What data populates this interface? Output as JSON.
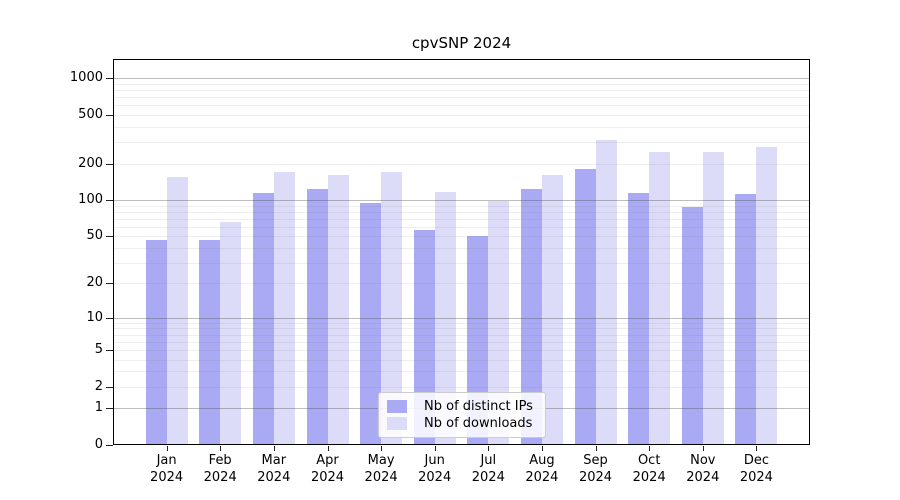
{
  "chart_data": {
    "type": "bar",
    "title": "cpvSNP 2024",
    "categories": [
      "Jan",
      "Feb",
      "Mar",
      "Apr",
      "May",
      "Jun",
      "Jul",
      "Aug",
      "Sep",
      "Oct",
      "Nov",
      "Dec"
    ],
    "xtick_year": "2024",
    "series": [
      {
        "name": "Nb of distinct IPs",
        "color": "#a9a9f4",
        "values": [
          47,
          47,
          115,
          124,
          95,
          56,
          50,
          123,
          180,
          114,
          87,
          112
        ]
      },
      {
        "name": "Nb of downloads",
        "color": "#dcdcf8",
        "values": [
          156,
          66,
          171,
          161,
          169,
          117,
          99,
          162,
          311,
          248,
          250,
          275
        ]
      }
    ],
    "yscale": "log1p",
    "yticks": [
      0,
      1,
      2,
      5,
      10,
      20,
      50,
      100,
      200,
      500,
      1000
    ],
    "ylim": [
      0,
      1440
    ],
    "xlabel": "",
    "ylabel": "",
    "grid": true,
    "legend_position": "lower center"
  }
}
